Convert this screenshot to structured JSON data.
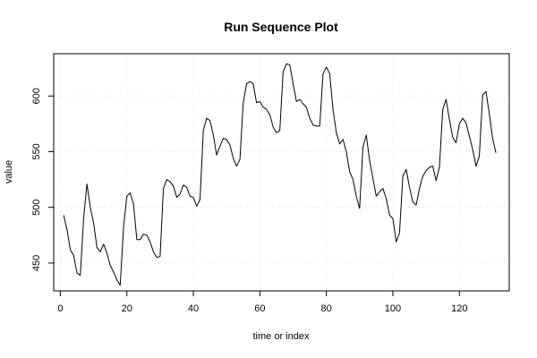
{
  "chart_data": {
    "type": "line",
    "title": "Run Sequence Plot",
    "xlabel": "time or index",
    "ylabel": "value",
    "xlim": [
      -2,
      135
    ],
    "ylim": [
      425,
      638
    ],
    "grid": true,
    "x_ticks": [
      0,
      20,
      40,
      60,
      80,
      100,
      120
    ],
    "y_ticks": [
      450,
      500,
      550,
      600
    ],
    "x": [
      1,
      2,
      3,
      4,
      5,
      6,
      7,
      8,
      9,
      10,
      11,
      12,
      13,
      14,
      15,
      16,
      17,
      18,
      19,
      20,
      21,
      22,
      23,
      24,
      25,
      26,
      27,
      28,
      29,
      30,
      31,
      32,
      33,
      34,
      35,
      36,
      37,
      38,
      39,
      40,
      41,
      42,
      43,
      44,
      45,
      46,
      47,
      48,
      49,
      50,
      51,
      52,
      53,
      54,
      55,
      56,
      57,
      58,
      59,
      60,
      61,
      62,
      63,
      64,
      65,
      66,
      67,
      68,
      69,
      70,
      71,
      72,
      73,
      74,
      75,
      76,
      77,
      78,
      79,
      80,
      81,
      82,
      83,
      84,
      85,
      86,
      87,
      88,
      89,
      90,
      91,
      92,
      93,
      94,
      95,
      96,
      97,
      98,
      99,
      100,
      101,
      102,
      103,
      104,
      105,
      106,
      107,
      108,
      109,
      110,
      111,
      112,
      113,
      114,
      115,
      116,
      117,
      118,
      119,
      120,
      121,
      122,
      123,
      124,
      125,
      126,
      127,
      128,
      129,
      130,
      131
    ],
    "series": [
      {
        "color": "#000000",
        "values": [
          493,
          480,
          462,
          457,
          441,
          439,
          490,
          521,
          500,
          486,
          464,
          460,
          467,
          459,
          448,
          442,
          435,
          430,
          482,
          510,
          513,
          503,
          471,
          471,
          476,
          475,
          469,
          460,
          455,
          456,
          517,
          525,
          523,
          519,
          509,
          512,
          520,
          518,
          510,
          509,
          501,
          507,
          569,
          580,
          578,
          565,
          547,
          555,
          562,
          561,
          556,
          544,
          537,
          543,
          594,
          611,
          613,
          611,
          594,
          595,
          590,
          588,
          583,
          572,
          567,
          569,
          622,
          629,
          628,
          611,
          595,
          597,
          593,
          590,
          580,
          574,
          573,
          573,
          620,
          626,
          620,
          588,
          567,
          557,
          561,
          550,
          532,
          525,
          510,
          499,
          554,
          565,
          542,
          526,
          510,
          514,
          517,
          508,
          493,
          490,
          469,
          477,
          528,
          534,
          518,
          505,
          502,
          517,
          528,
          533,
          536,
          537,
          524,
          536,
          588,
          597,
          579,
          563,
          558,
          575,
          580,
          576,
          564,
          552,
          537,
          546,
          601,
          604,
          584,
          562,
          549
        ]
      }
    ]
  }
}
